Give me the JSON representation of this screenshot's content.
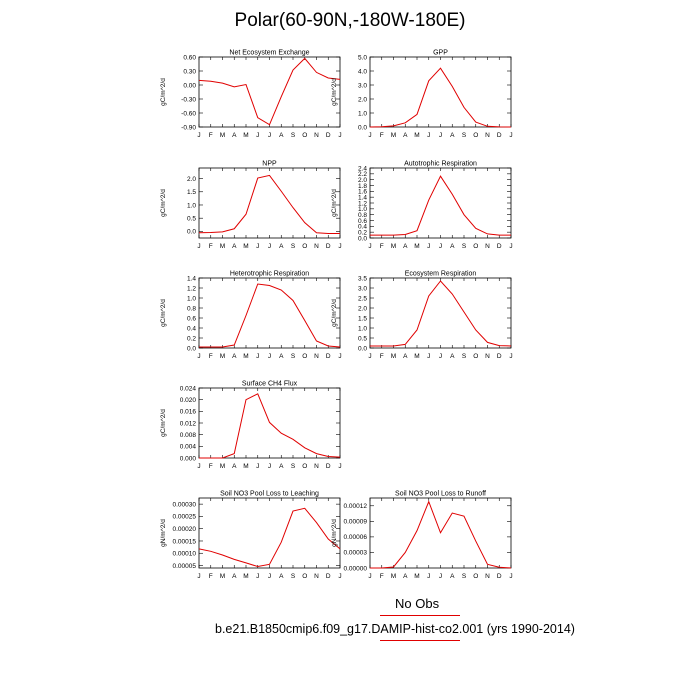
{
  "title": "Polar(60-90N,-180W-180E)",
  "legend": {
    "obs_label": "No Obs",
    "case_label": "b.e21.B1850cmip6.f09_g17.DAMIP-hist-co2.001 (yrs 1990-2014)",
    "line_color": "#e00000"
  },
  "chart_data": [
    {
      "type": "line",
      "title": "Net Ecosystem Exchange",
      "ylabel": "gC/m^2/d",
      "categories": [
        "J",
        "F",
        "M",
        "A",
        "M",
        "J",
        "J",
        "A",
        "S",
        "O",
        "N",
        "D",
        "J"
      ],
      "yticks": [
        "0.60",
        "0.30",
        "0.00",
        "-0.30",
        "-0.60",
        "-0.90"
      ],
      "ylim": [
        -0.9,
        0.6
      ],
      "values": [
        0.1,
        0.08,
        0.04,
        -0.04,
        0.01,
        -0.7,
        -0.85,
        -0.25,
        0.32,
        0.57,
        0.27,
        0.15,
        0.12
      ]
    },
    {
      "type": "line",
      "title": "GPP",
      "ylabel": "gC/m^2/d",
      "categories": [
        "J",
        "F",
        "M",
        "A",
        "M",
        "J",
        "J",
        "A",
        "S",
        "O",
        "N",
        "D",
        "J"
      ],
      "yticks": [
        "5.0",
        "4.0",
        "3.0",
        "2.0",
        "1.0",
        "0.0"
      ],
      "ylim": [
        0,
        5
      ],
      "values": [
        0.0,
        0.02,
        0.08,
        0.3,
        0.9,
        3.3,
        4.2,
        2.9,
        1.4,
        0.35,
        0.05,
        0.01,
        0.0
      ]
    },
    {
      "type": "line",
      "title": "NPP",
      "ylabel": "gC/m^2/d",
      "categories": [
        "J",
        "F",
        "M",
        "A",
        "M",
        "J",
        "J",
        "A",
        "S",
        "O",
        "N",
        "D",
        "J"
      ],
      "yticks": [
        "2.0",
        "1.5",
        "1.0",
        "0.5",
        "0.0"
      ],
      "ylim": [
        -0.25,
        2.4
      ],
      "values": [
        -0.05,
        -0.04,
        -0.02,
        0.1,
        0.65,
        2.02,
        2.12,
        1.52,
        0.9,
        0.33,
        -0.05,
        -0.08,
        -0.08
      ]
    },
    {
      "type": "line",
      "title": "Autotrophic Respiration",
      "ylabel": "gC/m^2/d",
      "categories": [
        "J",
        "F",
        "M",
        "A",
        "M",
        "J",
        "J",
        "A",
        "S",
        "O",
        "N",
        "D",
        "J"
      ],
      "yticks": [
        "2.4",
        "2.2",
        "2.0",
        "1.8",
        "1.6",
        "1.4",
        "1.2",
        "1.0",
        "0.8",
        "0.6",
        "0.4",
        "0.2",
        "0.0"
      ],
      "ylim": [
        0,
        2.4
      ],
      "values": [
        0.1,
        0.1,
        0.1,
        0.12,
        0.25,
        1.3,
        2.12,
        1.5,
        0.8,
        0.33,
        0.14,
        0.1,
        0.1
      ]
    },
    {
      "type": "line",
      "title": "Heterotrophic Respiration",
      "ylabel": "gC/m^2/d",
      "categories": [
        "J",
        "F",
        "M",
        "A",
        "M",
        "J",
        "J",
        "A",
        "S",
        "O",
        "N",
        "D",
        "J"
      ],
      "yticks": [
        "1.4",
        "1.2",
        "1.0",
        "0.8",
        "0.6",
        "0.4",
        "0.2",
        "0.0"
      ],
      "ylim": [
        0,
        1.4
      ],
      "values": [
        0.02,
        0.02,
        0.02,
        0.06,
        0.65,
        1.28,
        1.25,
        1.16,
        0.95,
        0.55,
        0.14,
        0.04,
        0.02
      ]
    },
    {
      "type": "line",
      "title": "Ecosystem Respiration",
      "ylabel": "gC/m^2/d",
      "categories": [
        "J",
        "F",
        "M",
        "A",
        "M",
        "J",
        "J",
        "A",
        "S",
        "O",
        "N",
        "D",
        "J"
      ],
      "yticks": [
        "3.5",
        "3.0",
        "2.5",
        "2.0",
        "1.5",
        "1.0",
        "0.5",
        "0.0"
      ],
      "ylim": [
        0,
        3.5
      ],
      "values": [
        0.1,
        0.1,
        0.1,
        0.18,
        0.9,
        2.6,
        3.35,
        2.7,
        1.8,
        0.9,
        0.28,
        0.12,
        0.1
      ]
    },
    {
      "type": "line",
      "title": "Surface CH4 Flux",
      "ylabel": "gC/m^2/d",
      "categories": [
        "J",
        "F",
        "M",
        "A",
        "M",
        "J",
        "J",
        "A",
        "S",
        "O",
        "N",
        "D",
        "J"
      ],
      "yticks": [
        "0.024",
        "0.020",
        "0.016",
        "0.012",
        "0.008",
        "0.004",
        "0.000"
      ],
      "ylim": [
        0,
        0.024
      ],
      "values": [
        0.0,
        0.0,
        0.0,
        0.0015,
        0.02,
        0.022,
        0.0122,
        0.0085,
        0.0064,
        0.0035,
        0.0015,
        0.0005,
        0.0003
      ]
    },
    {
      "type": "line",
      "title": "Soil NO3 Pool Loss to Leaching",
      "ylabel": "gN/m^2/d",
      "categories": [
        "J",
        "F",
        "M",
        "A",
        "M",
        "J",
        "J",
        "A",
        "S",
        "O",
        "N",
        "D",
        "J"
      ],
      "yticks": [
        "0.00030",
        "0.00025",
        "0.00020",
        "0.00015",
        "0.00010",
        "0.00005"
      ],
      "ylim": [
        4e-05,
        0.000325
      ],
      "values": [
        0.000118,
        0.000108,
        9.3e-05,
        7.5e-05,
        6.1e-05,
        4.6e-05,
        5.5e-05,
        0.000145,
        0.000272,
        0.000283,
        0.000225,
        0.000158,
        0.000118
      ]
    },
    {
      "type": "line",
      "title": "Soil NO3 Pool Loss to Runoff",
      "ylabel": "gN/m^2/d",
      "categories": [
        "J",
        "F",
        "M",
        "A",
        "M",
        "J",
        "J",
        "A",
        "S",
        "O",
        "N",
        "D",
        "J"
      ],
      "yticks": [
        "0.00012",
        "0.00009",
        "0.00006",
        "0.00003",
        "0.00000"
      ],
      "ylim": [
        0,
        0.000135
      ],
      "values": [
        0.0,
        0.0,
        2e-06,
        3e-05,
        7.2e-05,
        0.000128,
        6.8e-05,
        0.000106,
        0.0001,
        5.2e-05,
        7e-06,
        1.5e-06,
        0.0
      ]
    }
  ]
}
